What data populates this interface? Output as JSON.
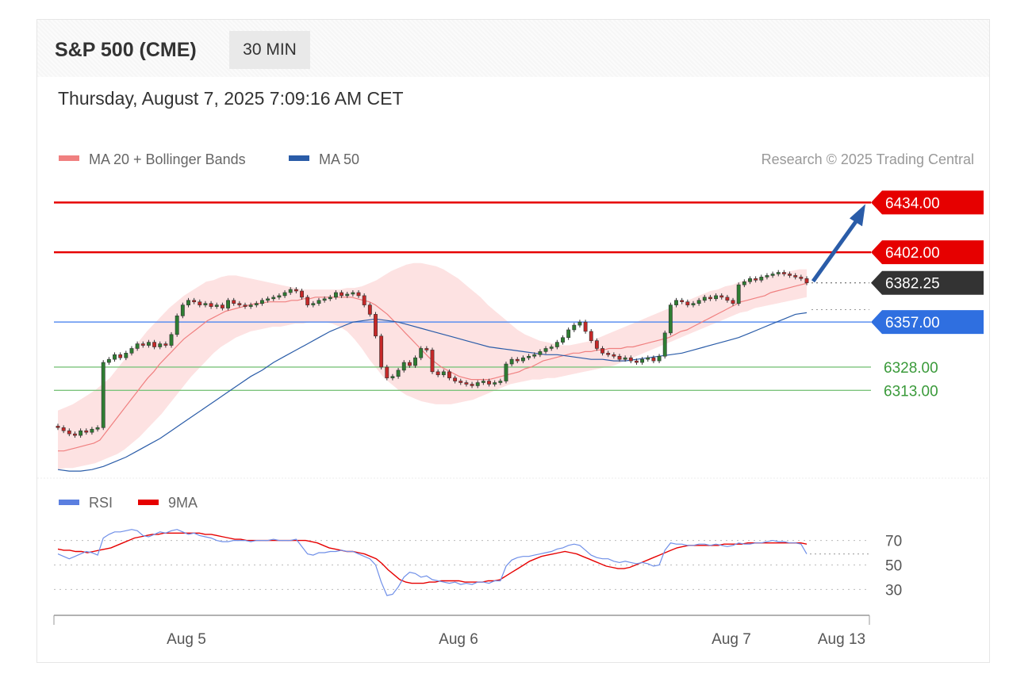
{
  "header": {
    "title": "S&P 500 (CME)",
    "timeframe": "30 MIN",
    "timestamp": "Thursday, August 7, 2025 7:09:16 AM CET"
  },
  "legend": {
    "ma20_label": "MA 20 + Bollinger Bands",
    "ma50_label": "MA 50",
    "copyright": "Research © 2025 Trading Central",
    "rsi_label": "RSI",
    "ma9_label": "9MA",
    "colors": {
      "ma20": "#f08080",
      "ma50": "#2a5ca8",
      "rsi": "#5b7fe0",
      "ma9": "#e60000"
    }
  },
  "chart_data": [
    {
      "type": "candlestick",
      "instrument": "S&P 500 (CME)",
      "interval": "30 MIN",
      "x_ticks": [
        "Aug 5",
        "Aug 6",
        "Aug 7",
        "Aug 13"
      ],
      "ylim": [
        6258,
        6448
      ],
      "levels": [
        {
          "value": 6434.0,
          "label": "6434.00",
          "kind": "resistance",
          "color": "#e60000"
        },
        {
          "value": 6402.0,
          "label": "6402.00",
          "kind": "resistance",
          "color": "#e60000"
        },
        {
          "value": 6382.25,
          "label": "6382.25",
          "kind": "last",
          "color": "#333333"
        },
        {
          "value": 6357.0,
          "label": "6357.00",
          "kind": "pivot",
          "color": "#2f6fe0"
        },
        {
          "value": 6328.0,
          "label": "6328.00",
          "kind": "support",
          "color": "#3a9a3a"
        },
        {
          "value": 6313.0,
          "label": "6313.00",
          "kind": "support",
          "color": "#3a9a3a"
        }
      ],
      "close": [
        6289,
        6287,
        6285,
        6284,
        6287,
        6286,
        6288,
        6289,
        6331,
        6333,
        6336,
        6334,
        6337,
        6340,
        6343,
        6342,
        6344,
        6341,
        6343,
        6342,
        6349,
        6361,
        6368,
        6371,
        6370,
        6368,
        6369,
        6367,
        6368,
        6366,
        6371,
        6369,
        6368,
        6367,
        6368,
        6369,
        6371,
        6372,
        6373,
        6374,
        6376,
        6378,
        6377,
        6373,
        6368,
        6369,
        6371,
        6372,
        6373,
        6376,
        6374,
        6375,
        6376,
        6374,
        6368,
        6362,
        6348,
        6328,
        6321,
        6322,
        6326,
        6331,
        6329,
        6334,
        6340,
        6339,
        6325,
        6323,
        6325,
        6321,
        6319,
        6318,
        6317,
        6316,
        6318,
        6319,
        6317,
        6318,
        6319,
        6330,
        6333,
        6332,
        6334,
        6335,
        6336,
        6338,
        6340,
        6341,
        6344,
        6347,
        6352,
        6355,
        6357,
        6351,
        6345,
        6340,
        6337,
        6336,
        6335,
        6333,
        6334,
        6332,
        6331,
        6333,
        6334,
        6332,
        6335,
        6350,
        6368,
        6371,
        6370,
        6368,
        6369,
        6371,
        6373,
        6372,
        6374,
        6373,
        6371,
        6369,
        6381,
        6383,
        6385,
        6384,
        6386,
        6387,
        6388,
        6389,
        6388,
        6387,
        6386,
        6385,
        6382.25
      ],
      "ma20": [
        6274,
        6274,
        6275,
        6276,
        6277,
        6278,
        6279,
        6281,
        6286,
        6291,
        6296,
        6301,
        6306,
        6311,
        6316,
        6321,
        6325,
        6330,
        6334,
        6338,
        6342,
        6346,
        6349,
        6352,
        6355,
        6358,
        6360,
        6362,
        6364,
        6365,
        6366,
        6367,
        6368,
        6369,
        6369,
        6370,
        6370,
        6370,
        6370,
        6371,
        6371,
        6372,
        6372,
        6373,
        6373,
        6373,
        6373,
        6373,
        6373,
        6373,
        6372,
        6371,
        6370,
        6368,
        6365,
        6362,
        6358,
        6354,
        6350,
        6346,
        6342,
        6338,
        6334,
        6331,
        6328,
        6326,
        6324,
        6322,
        6321,
        6320,
        6320,
        6320,
        6320,
        6321,
        6322,
        6323,
        6324,
        6325,
        6327,
        6328,
        6330,
        6332,
        6333,
        6334,
        6335,
        6336,
        6337,
        6337,
        6338,
        6338,
        6339,
        6339,
        6340,
        6340,
        6340,
        6341,
        6341,
        6342,
        6343,
        6344,
        6345,
        6346,
        6347,
        6349,
        6351,
        6352,
        6354,
        6356,
        6358,
        6360,
        6362,
        6364,
        6366,
        6368,
        6370,
        6371,
        6372,
        6373,
        6374,
        6376,
        6377,
        6378,
        6379,
        6380,
        6381,
        6382
      ],
      "bb_upper": [
        6300,
        6302,
        6304,
        6307,
        6310,
        6313,
        6317,
        6321,
        6327,
        6333,
        6339,
        6345,
        6351,
        6356,
        6361,
        6366,
        6370,
        6374,
        6377,
        6380,
        6383,
        6384,
        6386,
        6387,
        6387,
        6386,
        6385,
        6384,
        6383,
        6382,
        6381,
        6380,
        6379,
        6378,
        6378,
        6378,
        6378,
        6378,
        6378,
        6379,
        6379,
        6380,
        6382,
        6384,
        6387,
        6390,
        6392,
        6394,
        6395,
        6395,
        6394,
        6393,
        6391,
        6388,
        6385,
        6381,
        6377,
        6373,
        6368,
        6364,
        6360,
        6356,
        6352,
        6349,
        6347,
        6345,
        6344,
        6343,
        6342,
        6342,
        6343,
        6344,
        6345,
        6347,
        6349,
        6351,
        6353,
        6355,
        6357,
        6359,
        6361,
        6363,
        6365,
        6367,
        6369,
        6371,
        6373,
        6375,
        6377,
        6378,
        6380,
        6381,
        6383,
        6384,
        6385,
        6386,
        6387,
        6388,
        6389,
        6390,
        6391,
        6391
      ],
      "bb_lower": [
        6262,
        6263,
        6263,
        6264,
        6265,
        6266,
        6268,
        6270,
        6272,
        6275,
        6279,
        6283,
        6288,
        6293,
        6298,
        6304,
        6310,
        6316,
        6322,
        6327,
        6332,
        6337,
        6341,
        6344,
        6347,
        6349,
        6351,
        6352,
        6353,
        6354,
        6354,
        6355,
        6356,
        6356,
        6357,
        6357,
        6357,
        6356,
        6354,
        6351,
        6346,
        6340,
        6333,
        6327,
        6321,
        6317,
        6313,
        6310,
        6308,
        6306,
        6305,
        6304,
        6304,
        6304,
        6305,
        6306,
        6307,
        6309,
        6311,
        6313,
        6315,
        6317,
        6318,
        6319,
        6320,
        6320,
        6321,
        6321,
        6322,
        6323,
        6324,
        6325,
        6326,
        6327,
        6328,
        6329,
        6331,
        6333,
        6335,
        6337,
        6339,
        6341,
        6343,
        6345,
        6347,
        6349,
        6351,
        6353,
        6355,
        6357,
        6359,
        6361,
        6363,
        6364,
        6366,
        6367,
        6368,
        6369,
        6370,
        6371,
        6372,
        6373
      ],
      "ma50": [
        6262,
        6261,
        6261,
        6262,
        6264,
        6267,
        6270,
        6274,
        6278,
        6282,
        6287,
        6292,
        6297,
        6302,
        6307,
        6312,
        6317,
        6322,
        6326,
        6331,
        6335,
        6339,
        6343,
        6347,
        6351,
        6354,
        6357,
        6358,
        6359,
        6358,
        6357,
        6355,
        6353,
        6351,
        6349,
        6347,
        6345,
        6343,
        6341,
        6340,
        6339,
        6338,
        6337,
        6336,
        6336,
        6335,
        6334,
        6333,
        6333,
        6332,
        6332,
        6333,
        6334,
        6335,
        6336,
        6337,
        6339,
        6341,
        6343,
        6345,
        6347,
        6350,
        6353,
        6356,
        6359,
        6362,
        6363
      ]
    },
    {
      "type": "line",
      "title": "RSI",
      "ylim": [
        14,
        84
      ],
      "y_ticks": [
        70,
        50,
        30
      ],
      "series": [
        {
          "name": "RSI",
          "values": [
            59,
            57,
            55,
            57,
            59,
            61,
            60,
            58,
            72,
            75,
            77,
            77,
            78,
            79,
            78,
            74,
            73,
            75,
            77,
            76,
            78,
            79,
            77,
            75,
            76,
            74,
            73,
            72,
            70,
            69,
            69,
            70,
            70,
            70,
            69,
            70,
            70,
            70,
            71,
            70,
            70,
            70,
            71,
            65,
            59,
            58,
            60,
            60,
            61,
            61,
            62,
            61,
            61,
            59,
            57,
            55,
            50,
            36,
            25,
            26,
            32,
            40,
            44,
            43,
            40,
            41,
            38,
            37,
            36,
            35,
            36,
            34,
            35,
            34,
            36,
            36,
            35,
            37,
            37,
            49,
            54,
            56,
            57,
            57,
            58,
            59,
            60,
            61,
            63,
            64,
            66,
            67,
            66,
            62,
            58,
            56,
            55,
            55,
            53,
            52,
            53,
            52,
            51,
            52,
            51,
            49,
            50,
            62,
            68,
            67,
            67,
            66,
            66,
            67,
            67,
            66,
            67,
            66,
            65,
            66,
            68,
            67,
            67,
            68,
            68,
            69,
            70,
            69,
            69,
            68,
            68,
            67,
            59
          ]
        },
        {
          "name": "9MA",
          "values": [
            63,
            62,
            62,
            61,
            61,
            60,
            61,
            62,
            63,
            64,
            66,
            68,
            70,
            72,
            73,
            74,
            75,
            75,
            76,
            76,
            76,
            76,
            76,
            76,
            76,
            75,
            75,
            74,
            73,
            72,
            71,
            71,
            70,
            70,
            70,
            70,
            70,
            70,
            70,
            70,
            70,
            70,
            70,
            69,
            68,
            66,
            64,
            63,
            62,
            61,
            61,
            60,
            59,
            57,
            55,
            51,
            46,
            42,
            38,
            36,
            35,
            35,
            35,
            36,
            36,
            37,
            37,
            37,
            37,
            36,
            36,
            36,
            36,
            37,
            37,
            38,
            41,
            44,
            47,
            50,
            53,
            55,
            57,
            58,
            59,
            60,
            61,
            60,
            59,
            57,
            55,
            53,
            51,
            49,
            48,
            47,
            47,
            48,
            50,
            52,
            54,
            56,
            58,
            60,
            62,
            64,
            65,
            66,
            66,
            66,
            66,
            66,
            66,
            67,
            67,
            67,
            67,
            68,
            68,
            68,
            68,
            68,
            68,
            68,
            68,
            68,
            68,
            67
          ]
        }
      ]
    }
  ]
}
